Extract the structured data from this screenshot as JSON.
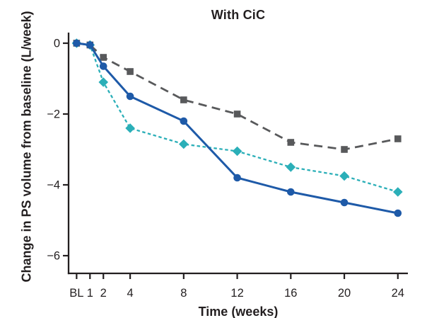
{
  "chart_data": {
    "type": "line",
    "title": "With CiC",
    "xlabel": "Time (weeks)",
    "ylabel": "Change in PS volume from baseline (L/week)",
    "x_tick_labels": [
      "BL",
      "1",
      "2",
      "4",
      "8",
      "12",
      "16",
      "20",
      "24"
    ],
    "x_week_values": [
      0,
      1,
      2,
      4,
      8,
      12,
      16,
      20,
      24
    ],
    "y_ticks": [
      0,
      -2,
      -4,
      -6
    ],
    "y_tick_labels": [
      "0",
      "−2",
      "−4",
      "−6"
    ],
    "ylim": [
      -6.5,
      0.3
    ],
    "xlim_weeks": [
      -0.6,
      24.75
    ],
    "grid": false,
    "legend": "none",
    "background_color": "#ffffff",
    "axis_color": "#231f20",
    "text_color": "#231f20",
    "series": [
      {
        "name": "squares-long-dash",
        "marker": "square",
        "line_style": "long-dash",
        "color": "#58595b",
        "values": [
          0,
          -0.05,
          -0.4,
          -0.8,
          -1.6,
          -2.0,
          -2.8,
          -3.0,
          -2.7
        ]
      },
      {
        "name": "diamonds-short-dash",
        "marker": "diamond",
        "line_style": "short-dash",
        "color": "#2bafb8",
        "values": [
          0,
          -0.05,
          -1.1,
          -2.4,
          -2.85,
          -3.05,
          -3.5,
          -3.75,
          -4.2
        ]
      },
      {
        "name": "circles-solid",
        "marker": "circle",
        "line_style": "solid",
        "color": "#1e5aa8",
        "values": [
          0,
          -0.05,
          -0.65,
          -1.5,
          -2.2,
          -3.8,
          -4.2,
          -4.5,
          -4.8
        ]
      }
    ]
  }
}
